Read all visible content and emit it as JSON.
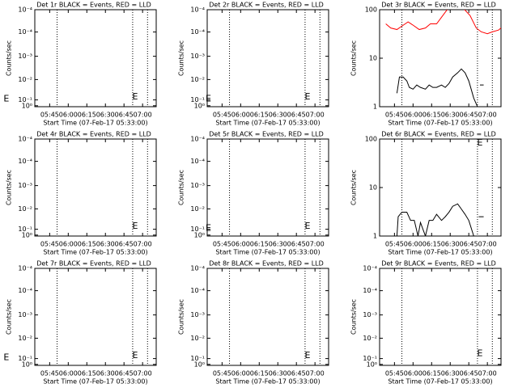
{
  "chart_data": [
    {
      "type": "line",
      "title": "Det 1r BLACK = Events, RED = LLD",
      "xlabel": "Start Time (07-Feb-17 05:33:00)",
      "ylabel": "Counts/sec",
      "xlim": [
        333,
        431
      ],
      "xticks": [
        {
          "value": 345,
          "label": "05:45"
        },
        {
          "value": 360,
          "label": "06:00"
        },
        {
          "value": 375,
          "label": "06:15"
        },
        {
          "value": 390,
          "label": "06:30"
        },
        {
          "value": 405,
          "label": "06:45"
        },
        {
          "value": 420,
          "label": "07:00"
        }
      ],
      "ylim": [
        0,
        1
      ],
      "log": false,
      "yticks": [
        {
          "value": 1,
          "label": "10⁻⁴"
        },
        {
          "value": 0.77,
          "label": "10⁻⁴"
        },
        {
          "value": 0.52,
          "label": "10⁻³"
        },
        {
          "value": 0.28,
          "label": "10⁻²"
        },
        {
          "value": 0.07,
          "label": "10⁻¹"
        },
        {
          "value": 0.01,
          "label": "10⁰"
        }
      ],
      "vlines": [
        351,
        412,
        424
      ],
      "annotations": [
        {
          "text": "E",
          "x": 310,
          "y": 0.08
        },
        {
          "text": "E",
          "x": 414,
          "y": 0.1
        }
      ],
      "series": []
    },
    {
      "type": "line",
      "title": "Det 2r BLACK = Events, RED = LLD",
      "xlabel": "Start Time (07-Feb-17 05:33:00)",
      "ylabel": "Counts/sec",
      "xlim": [
        333,
        431
      ],
      "xticks": [
        {
          "value": 345,
          "label": "05:45"
        },
        {
          "value": 360,
          "label": "06:00"
        },
        {
          "value": 375,
          "label": "06:15"
        },
        {
          "value": 390,
          "label": "06:30"
        },
        {
          "value": 405,
          "label": "06:45"
        },
        {
          "value": 420,
          "label": "07:00"
        }
      ],
      "ylim": [
        0,
        1
      ],
      "log": false,
      "yticks": [
        {
          "value": 1,
          "label": "10⁻⁴"
        },
        {
          "value": 0.77,
          "label": "10⁻⁴"
        },
        {
          "value": 0.52,
          "label": "10⁻³"
        },
        {
          "value": 0.28,
          "label": "10⁻²"
        },
        {
          "value": 0.07,
          "label": "10⁻¹"
        },
        {
          "value": 0.01,
          "label": "10⁰"
        }
      ],
      "vlines": [
        351,
        412,
        424
      ],
      "annotations": [
        {
          "text": "E",
          "x": 334,
          "y": 0.08
        },
        {
          "text": "E",
          "x": 414,
          "y": 0.1
        }
      ],
      "series": []
    },
    {
      "type": "line",
      "title": "Det 3r BLACK = Events, RED = LLD",
      "xlabel": "Start Time (07-Feb-17 05:33:00)",
      "ylabel": "Counts/sec",
      "xlim": [
        333,
        431
      ],
      "xticks": [
        {
          "value": 345,
          "label": "05:45"
        },
        {
          "value": 360,
          "label": "06:00"
        },
        {
          "value": 375,
          "label": "06:15"
        },
        {
          "value": 390,
          "label": "06:30"
        },
        {
          "value": 405,
          "label": "06:45"
        },
        {
          "value": 420,
          "label": "07:00"
        }
      ],
      "ylim": [
        1,
        100
      ],
      "log": true,
      "yticks": [
        1,
        10,
        100
      ],
      "vlines": [
        351,
        412,
        424
      ],
      "annotations": [],
      "series": [
        {
          "name": "LLD",
          "color": "#ff0000",
          "x": [
            338,
            342,
            347,
            351,
            356,
            360,
            365,
            370,
            374,
            379,
            383,
            388,
            392,
            397,
            401,
            406,
            411,
            415,
            420,
            424,
            429,
            431
          ],
          "values": [
            51,
            42,
            39,
            46,
            56,
            48,
            39,
            42,
            51,
            51,
            70,
            104,
            122,
            112,
            104,
            76,
            42,
            35,
            32,
            35,
            38,
            42
          ]
        },
        {
          "name": "Events",
          "color": "#000000",
          "x": [
            347,
            349,
            352,
            355,
            357,
            360,
            363,
            366,
            370,
            373,
            376,
            379,
            383,
            386,
            389,
            392,
            396,
            399,
            402,
            405,
            409,
            412,
            413,
            414,
            417
          ],
          "values": [
            1.9,
            4.1,
            4.1,
            3.4,
            2.5,
            2.3,
            2.8,
            2.5,
            2.3,
            2.8,
            2.5,
            2.5,
            2.8,
            2.5,
            3.0,
            4.1,
            5.0,
            6.0,
            5.0,
            3.4,
            1.5,
            1.0,
            null,
            2.8,
            2.8
          ]
        }
      ]
    },
    {
      "type": "line",
      "title": "Det 4r BLACK = Events, RED = LLD",
      "xlabel": "Start Time (07-Feb-17 05:33:00)",
      "ylabel": "Counts/sec",
      "xlim": [
        333,
        431
      ],
      "xticks": [
        {
          "value": 345,
          "label": "05:45"
        },
        {
          "value": 360,
          "label": "06:00"
        },
        {
          "value": 375,
          "label": "06:15"
        },
        {
          "value": 390,
          "label": "06:30"
        },
        {
          "value": 405,
          "label": "06:45"
        },
        {
          "value": 420,
          "label": "07:00"
        }
      ],
      "ylim": [
        0,
        1
      ],
      "log": false,
      "yticks": [
        {
          "value": 1,
          "label": "10⁻⁴"
        },
        {
          "value": 0.77,
          "label": "10⁻⁴"
        },
        {
          "value": 0.52,
          "label": "10⁻³"
        },
        {
          "value": 0.28,
          "label": "10⁻²"
        },
        {
          "value": 0.07,
          "label": "10⁻¹"
        },
        {
          "value": 0.01,
          "label": "10⁰"
        }
      ],
      "vlines": [
        351,
        412,
        424
      ],
      "annotations": [
        {
          "text": "E",
          "x": 414,
          "y": 0.1
        }
      ],
      "series": []
    },
    {
      "type": "line",
      "title": "Det 5r BLACK = Events, RED = LLD",
      "xlabel": "Start Time (07-Feb-17 05:33:00)",
      "ylabel": "Counts/sec",
      "xlim": [
        333,
        431
      ],
      "xticks": [
        {
          "value": 345,
          "label": "05:45"
        },
        {
          "value": 360,
          "label": "06:00"
        },
        {
          "value": 375,
          "label": "06:15"
        },
        {
          "value": 390,
          "label": "06:30"
        },
        {
          "value": 405,
          "label": "06:45"
        },
        {
          "value": 420,
          "label": "07:00"
        }
      ],
      "ylim": [
        0,
        1
      ],
      "log": false,
      "yticks": [
        {
          "value": 1,
          "label": "10⁻⁴"
        },
        {
          "value": 0.77,
          "label": "10⁻⁴"
        },
        {
          "value": 0.52,
          "label": "10⁻³"
        },
        {
          "value": 0.28,
          "label": "10⁻²"
        },
        {
          "value": 0.07,
          "label": "10⁻¹"
        },
        {
          "value": 0.01,
          "label": "10⁰"
        }
      ],
      "vlines": [
        351,
        412,
        424
      ],
      "annotations": [
        {
          "text": "E",
          "x": 334,
          "y": 0.08
        },
        {
          "text": "E",
          "x": 414,
          "y": 0.1
        }
      ],
      "series": []
    },
    {
      "type": "line",
      "title": "Det 6r BLACK = Events, RED = LLD",
      "xlabel": "Start Time (07-Feb-17 05:33:00)",
      "ylabel": "Counts/sec",
      "xlim": [
        333,
        431
      ],
      "xticks": [
        {
          "value": 345,
          "label": "05:45"
        },
        {
          "value": 360,
          "label": "06:00"
        },
        {
          "value": 375,
          "label": "06:15"
        },
        {
          "value": 390,
          "label": "06:30"
        },
        {
          "value": 405,
          "label": "06:45"
        },
        {
          "value": 420,
          "label": "07:00"
        }
      ],
      "ylim": [
        1,
        100
      ],
      "log": true,
      "yticks": [
        1,
        10,
        100
      ],
      "vlines": [
        351,
        412,
        424
      ],
      "annotations": [
        {
          "text": "E",
          "x": 414,
          "y": 82
        }
      ],
      "series": [
        {
          "name": "Events",
          "color": "#000000",
          "x": [
            347,
            348,
            351,
            355,
            358,
            361,
            364,
            366,
            370,
            373,
            376,
            379,
            383,
            386,
            389,
            392,
            396,
            399,
            402,
            405,
            409,
            411,
            413,
            417
          ],
          "values": [
            1.0,
            2.5,
            3.1,
            3.1,
            2.1,
            2.1,
            1.0,
            1.9,
            1.0,
            2.1,
            2.1,
            2.8,
            2.1,
            2.5,
            3.1,
            4.1,
            4.6,
            3.6,
            2.8,
            2.1,
            1.0,
            null,
            2.5,
            2.5
          ]
        }
      ]
    },
    {
      "type": "line",
      "title": "Det 7r BLACK = Events, RED = LLD",
      "xlabel": "Start Time (07-Feb-17 05:33:00)",
      "ylabel": "Counts/sec",
      "xlim": [
        333,
        431
      ],
      "xticks": [
        {
          "value": 345,
          "label": "05:45"
        },
        {
          "value": 360,
          "label": "06:00"
        },
        {
          "value": 375,
          "label": "06:15"
        },
        {
          "value": 390,
          "label": "06:30"
        },
        {
          "value": 405,
          "label": "06:45"
        },
        {
          "value": 420,
          "label": "07:00"
        }
      ],
      "ylim": [
        0,
        1
      ],
      "log": false,
      "yticks": [
        {
          "value": 1,
          "label": "10⁻⁴"
        },
        {
          "value": 0.77,
          "label": "10⁻⁴"
        },
        {
          "value": 0.52,
          "label": "10⁻³"
        },
        {
          "value": 0.28,
          "label": "10⁻²"
        },
        {
          "value": 0.07,
          "label": "10⁻¹"
        },
        {
          "value": 0.01,
          "label": "10⁰"
        }
      ],
      "vlines": [
        351,
        412,
        424
      ],
      "annotations": [
        {
          "text": "E",
          "x": 310,
          "y": 0.08
        },
        {
          "text": "E",
          "x": 414,
          "y": 0.1
        }
      ],
      "series": []
    },
    {
      "type": "line",
      "title": "Det 8r BLACK = Events, RED = LLD",
      "xlabel": "Start Time (07-Feb-17 05:33:00)",
      "ylabel": "Counts/sec",
      "xlim": [
        333,
        431
      ],
      "xticks": [
        {
          "value": 345,
          "label": "05:45"
        },
        {
          "value": 360,
          "label": "06:00"
        },
        {
          "value": 375,
          "label": "06:15"
        },
        {
          "value": 390,
          "label": "06:30"
        },
        {
          "value": 405,
          "label": "06:45"
        },
        {
          "value": 420,
          "label": "07:00"
        }
      ],
      "ylim": [
        0,
        1
      ],
      "log": false,
      "yticks": [
        {
          "value": 1,
          "label": "10⁻⁴"
        },
        {
          "value": 0.77,
          "label": "10⁻⁴"
        },
        {
          "value": 0.52,
          "label": "10⁻³"
        },
        {
          "value": 0.28,
          "label": "10⁻²"
        },
        {
          "value": 0.07,
          "label": "10⁻¹"
        },
        {
          "value": 0.01,
          "label": "10⁰"
        }
      ],
      "vlines": [
        351,
        412,
        424
      ],
      "annotations": [
        {
          "text": "E",
          "x": 414,
          "y": 0.1
        }
      ],
      "series": []
    },
    {
      "type": "line",
      "title": "Det 9r BLACK = Events, RED = LLD",
      "xlabel": "Start Time (07-Feb-17 05:33:00)",
      "ylabel": "Counts/sec",
      "xlim": [
        333,
        431
      ],
      "xticks": [
        {
          "value": 345,
          "label": "05:45"
        },
        {
          "value": 360,
          "label": "06:00"
        },
        {
          "value": 375,
          "label": "06:15"
        },
        {
          "value": 390,
          "label": "06:30"
        },
        {
          "value": 405,
          "label": "06:45"
        },
        {
          "value": 420,
          "label": "07:00"
        }
      ],
      "ylim": [
        0,
        1
      ],
      "log": false,
      "yticks": [
        {
          "value": 1,
          "label": "10⁻⁴"
        },
        {
          "value": 0.77,
          "label": "10⁻⁴"
        },
        {
          "value": 0.52,
          "label": "10⁻³"
        },
        {
          "value": 0.28,
          "label": "10⁻²"
        },
        {
          "value": 0.07,
          "label": "10⁻¹"
        },
        {
          "value": 0.01,
          "label": "10⁰"
        }
      ],
      "vlines": [
        351,
        412,
        424
      ],
      "annotations": [
        {
          "text": "E",
          "x": 414,
          "y": 0.12
        }
      ],
      "series": []
    }
  ]
}
